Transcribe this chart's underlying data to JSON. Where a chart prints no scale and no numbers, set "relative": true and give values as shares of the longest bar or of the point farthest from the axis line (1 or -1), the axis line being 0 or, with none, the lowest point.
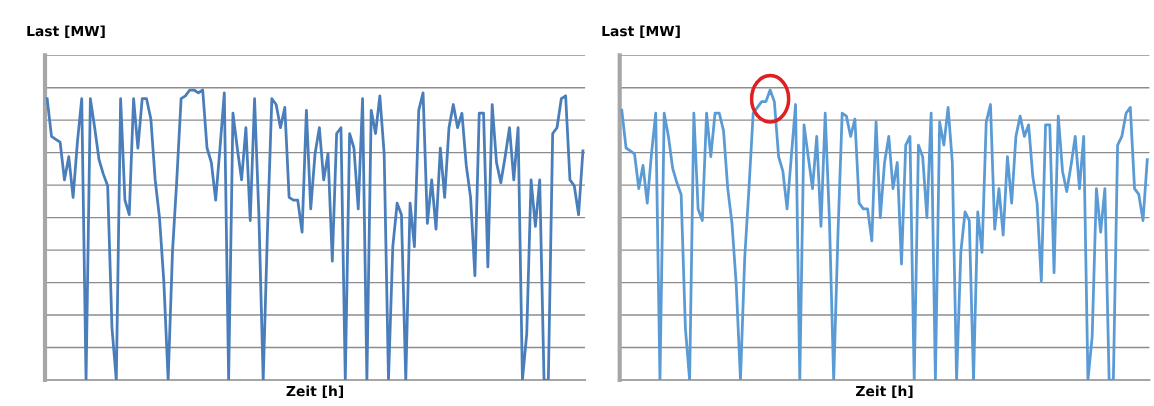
{
  "chart_data": [
    {
      "type": "line",
      "relative": true,
      "ylabel": "Last [MW]",
      "xlabel": "Zeit [h]",
      "grid": "y",
      "categories": [
        null,
        null,
        null,
        null,
        null,
        null,
        null,
        null,
        null,
        null,
        null,
        null,
        null,
        null,
        null,
        null,
        null,
        null,
        null,
        null,
        null,
        null,
        null,
        null,
        null,
        null,
        null,
        null,
        null,
        null,
        null,
        null,
        null,
        null,
        null,
        null,
        null,
        null,
        null,
        null,
        null,
        null,
        null,
        null,
        null,
        null,
        null,
        null,
        null,
        null,
        null,
        null,
        null,
        null,
        null,
        null,
        null,
        null,
        null,
        null,
        null,
        null,
        null,
        null,
        null,
        null,
        null,
        null,
        null,
        null,
        null,
        null,
        null,
        null,
        null,
        null,
        null,
        null,
        null,
        null,
        null,
        null,
        null,
        null,
        null,
        null,
        null,
        null,
        null,
        null,
        null,
        null,
        null,
        null,
        null,
        null,
        null,
        null,
        null,
        null,
        null,
        null,
        null,
        null,
        null,
        null,
        null,
        null,
        null,
        null,
        null,
        null,
        null,
        null,
        null,
        null,
        null,
        null,
        null,
        null,
        null,
        null,
        null,
        null,
        null
      ],
      "series": [
        {
          "color": "#4a7ebb",
          "values": [
            0.97,
            0.84,
            0.83,
            0.82,
            0.69,
            0.77,
            0.63,
            0.82,
            0.97,
            0,
            0.97,
            0.87,
            0.76,
            0.71,
            0.67,
            0.18,
            0,
            0.97,
            0.62,
            0.57,
            0.97,
            0.8,
            0.97,
            0.97,
            0.9,
            0.69,
            0.56,
            0.34,
            0,
            0.44,
            0.69,
            0.97,
            0.98,
            1,
            1,
            0.99,
            1,
            0.8,
            0.75,
            0.62,
            0.8,
            0.99,
            0,
            0.92,
            0.8,
            0.69,
            0.87,
            0.55,
            0.97,
            0.57,
            0,
            0.52,
            0.97,
            0.95,
            0.87,
            0.94,
            0.63,
            0.62,
            0.62,
            0.51,
            0.93,
            0.59,
            0.78,
            0.87,
            0.69,
            0.78,
            0.41,
            0.85,
            0.87,
            0,
            0.85,
            0.8,
            0.59,
            0.97,
            0,
            0.93,
            0.85,
            0.98,
            0.78,
            0,
            0.46,
            0.61,
            0.57,
            0,
            0.61,
            0.46,
            0.93,
            0.99,
            0.54,
            0.69,
            0.52,
            0.8,
            0.63,
            0.87,
            0.95,
            0.87,
            0.92,
            0.74,
            0.63,
            0.36,
            0.92,
            0.92,
            0.39,
            0.95,
            0.75,
            0.68,
            0.77,
            0.87,
            0.69,
            0.87,
            0,
            0.16,
            0.69,
            0.53,
            0.69,
            0,
            0,
            0.85,
            0.87,
            0.97,
            0.98,
            0.69,
            0.67,
            0.57,
            0.79
          ]
        }
      ]
    },
    {
      "type": "line",
      "relative": true,
      "ylabel": "Last [MW]",
      "xlabel": "Zeit [h]",
      "grid": "y",
      "categories": [
        null,
        null,
        null,
        null,
        null,
        null,
        null,
        null,
        null,
        null,
        null,
        null,
        null,
        null,
        null,
        null,
        null,
        null,
        null,
        null,
        null,
        null,
        null,
        null,
        null,
        null,
        null,
        null,
        null,
        null,
        null,
        null,
        null,
        null,
        null,
        null,
        null,
        null,
        null,
        null,
        null,
        null,
        null,
        null,
        null,
        null,
        null,
        null,
        null,
        null,
        null,
        null,
        null,
        null,
        null,
        null,
        null,
        null,
        null,
        null,
        null,
        null,
        null,
        null,
        null,
        null,
        null,
        null,
        null,
        null,
        null,
        null,
        null,
        null,
        null,
        null,
        null,
        null,
        null,
        null,
        null,
        null,
        null,
        null,
        null,
        null,
        null,
        null,
        null,
        null,
        null,
        null,
        null,
        null,
        null,
        null,
        null,
        null,
        null,
        null,
        null,
        null,
        null,
        null,
        null,
        null,
        null,
        null,
        null,
        null,
        null,
        null,
        null,
        null,
        null,
        null,
        null,
        null,
        null,
        null,
        null,
        null,
        null,
        null,
        null
      ],
      "series": [
        {
          "color": "#5b9bd5",
          "values": [
            0.93,
            0.8,
            0.79,
            0.78,
            0.66,
            0.74,
            0.61,
            0.78,
            0.92,
            0,
            0.92,
            0.84,
            0.73,
            0.68,
            0.64,
            0.18,
            0,
            0.92,
            0.59,
            0.55,
            0.92,
            0.77,
            0.92,
            0.92,
            0.86,
            0.66,
            0.54,
            0.33,
            0,
            0.42,
            0.66,
            0.92,
            0.94,
            0.96,
            0.96,
            1,
            0.96,
            0.77,
            0.72,
            0.59,
            0.77,
            0.95,
            0,
            0.88,
            0.77,
            0.66,
            0.84,
            0.53,
            0.92,
            0.55,
            0,
            0.5,
            0.92,
            0.91,
            0.84,
            0.9,
            0.61,
            0.59,
            0.59,
            0.48,
            0.89,
            0.56,
            0.75,
            0.84,
            0.66,
            0.75,
            0.4,
            0.81,
            0.84,
            0,
            0.81,
            0.77,
            0.56,
            0.92,
            0,
            0.89,
            0.81,
            0.94,
            0.75,
            0,
            0.44,
            0.58,
            0.55,
            0,
            0.58,
            0.44,
            0.89,
            0.95,
            0.52,
            0.66,
            0.5,
            0.77,
            0.61,
            0.84,
            0.91,
            0.84,
            0.88,
            0.7,
            0.61,
            0.34,
            0.88,
            0.88,
            0.37,
            0.91,
            0.72,
            0.65,
            0.74,
            0.84,
            0.66,
            0.84,
            0,
            0.15,
            0.66,
            0.51,
            0.66,
            0,
            0,
            0.81,
            0.84,
            0.92,
            0.94,
            0.66,
            0.64,
            0.55,
            0.76
          ]
        }
      ]
    }
  ]
}
